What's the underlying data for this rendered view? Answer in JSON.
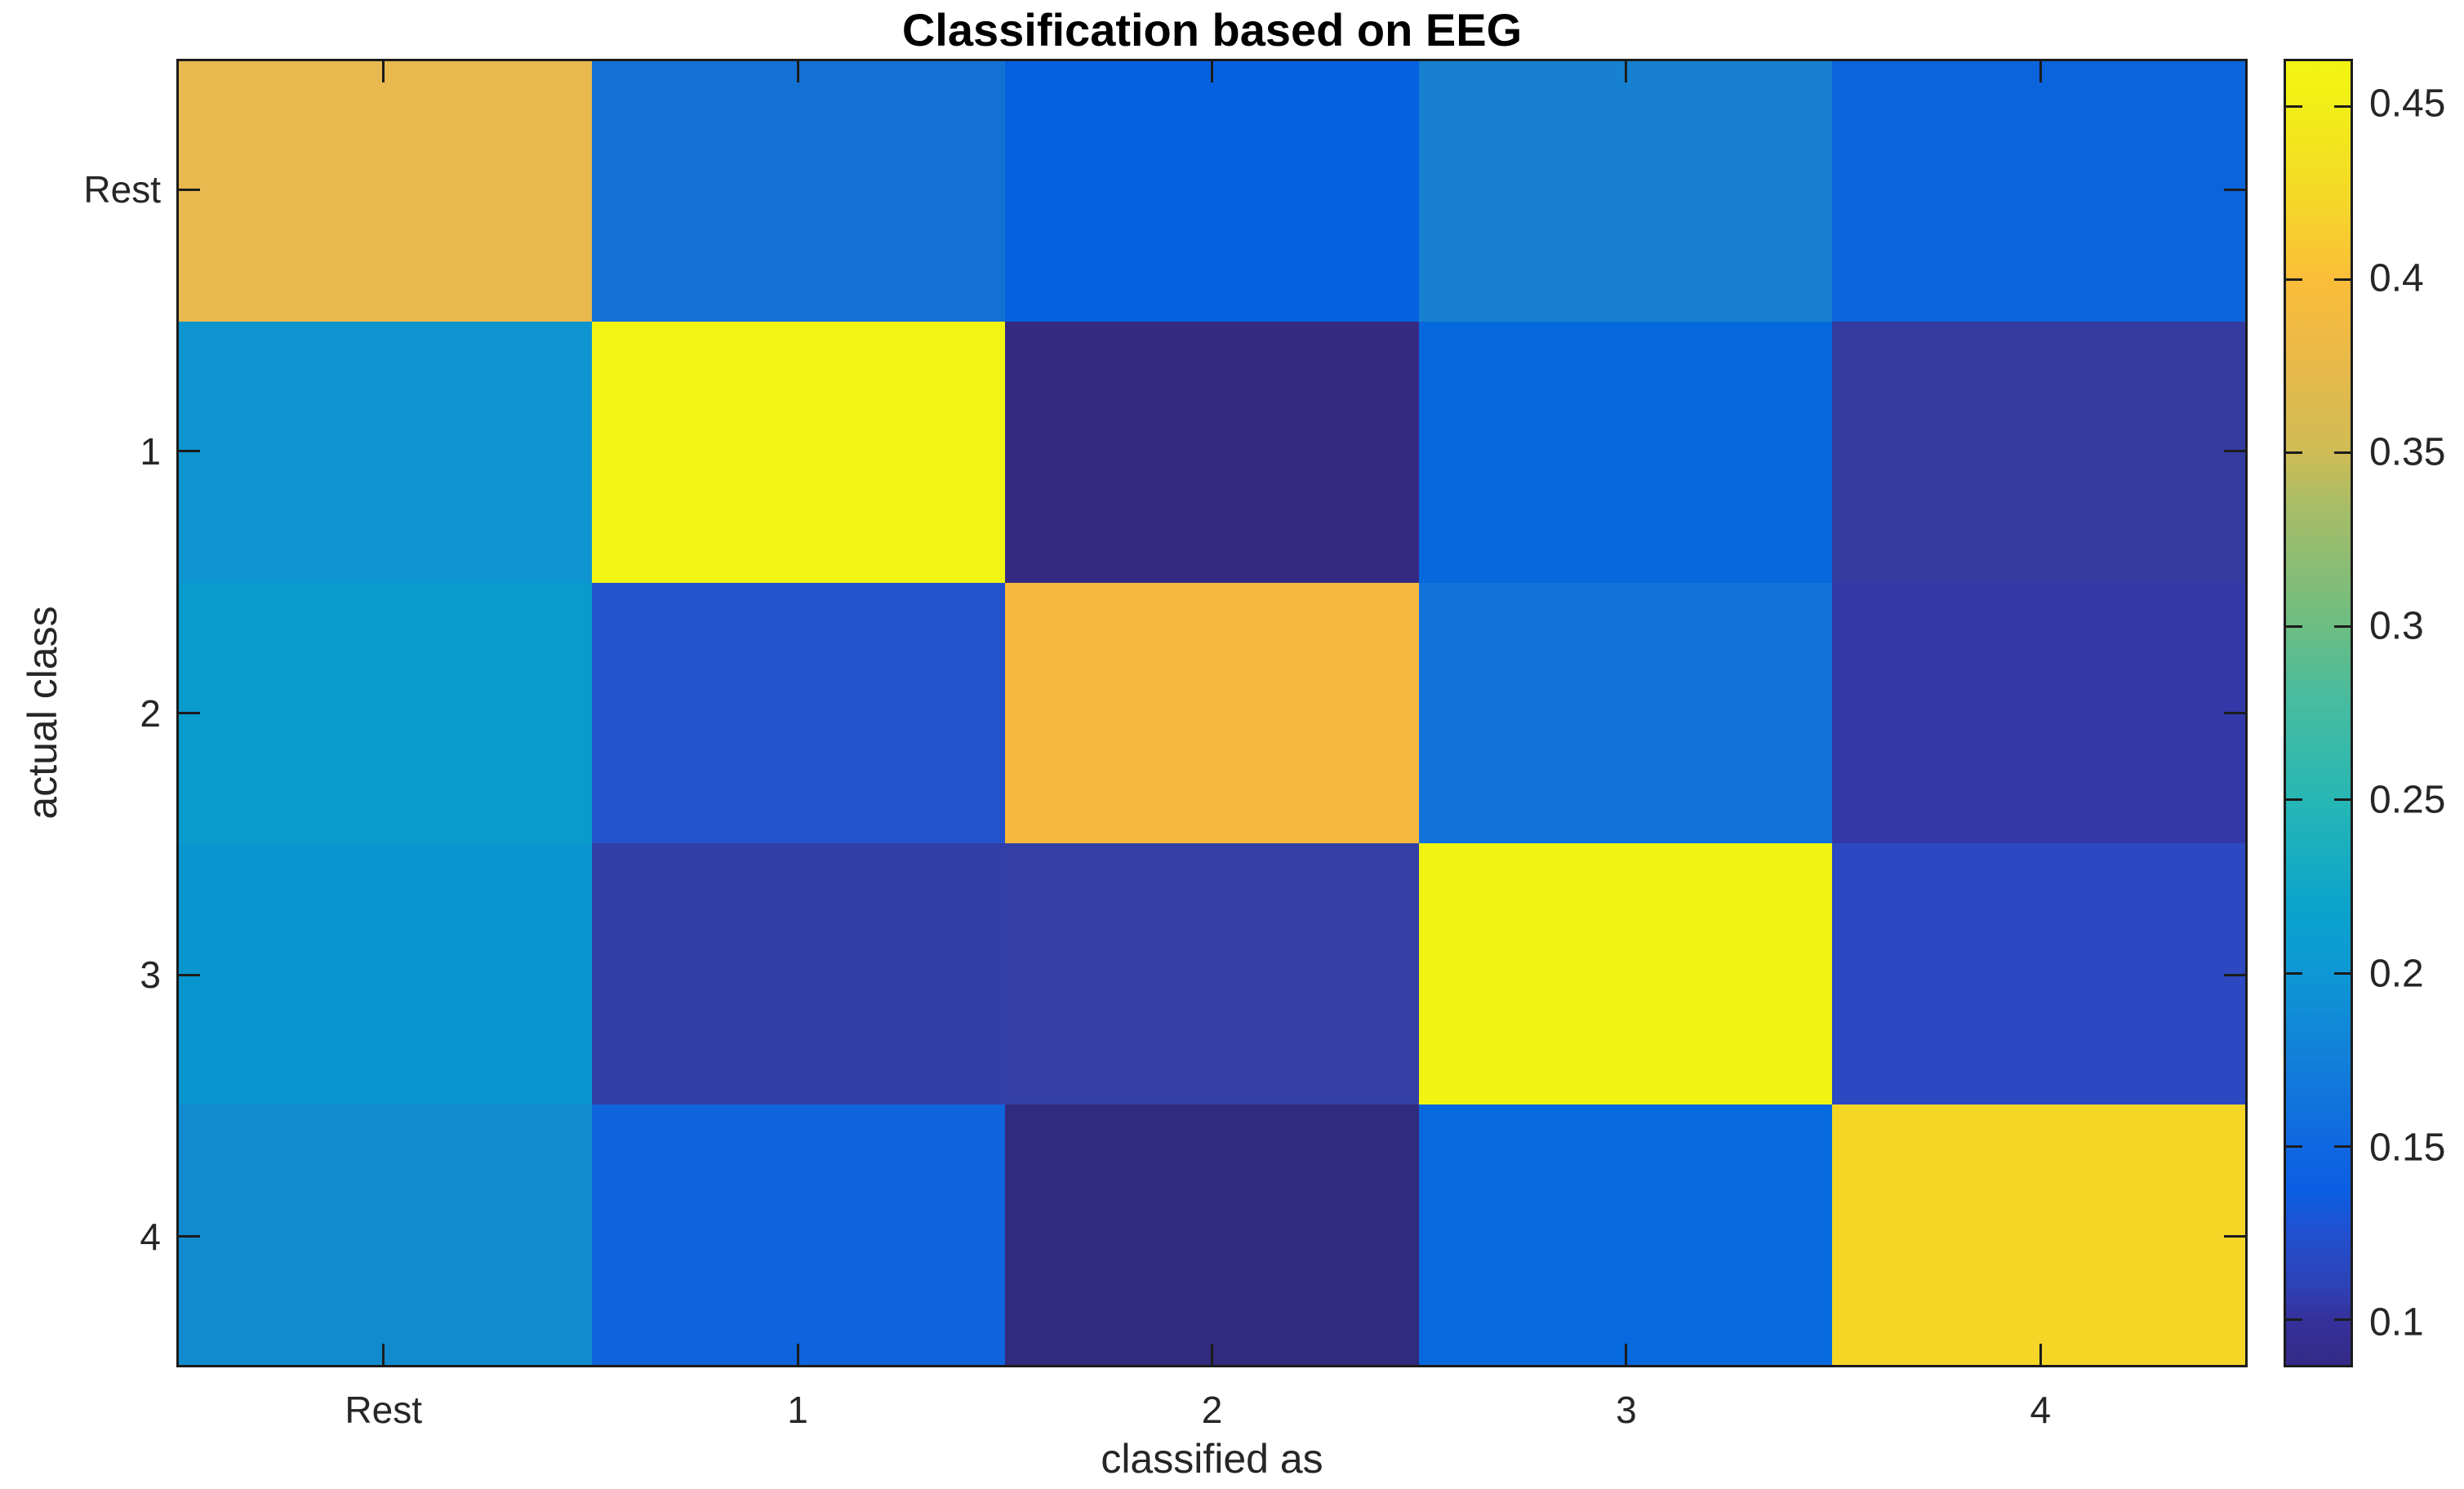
{
  "figure": {
    "background": "#ffffff",
    "title": "Classification based on EEG"
  },
  "chart_data": {
    "type": "heatmap",
    "title": "Classification based on EEG",
    "xlabel": "classified as",
    "ylabel": "actual class",
    "x_categories": [
      "Rest",
      "1",
      "2",
      "3",
      "4"
    ],
    "y_categories": [
      "Rest",
      "1",
      "2",
      "3",
      "4"
    ],
    "values": [
      [
        0.38,
        0.16,
        0.14,
        0.18,
        0.15
      ],
      [
        0.2,
        0.46,
        0.09,
        0.14,
        0.1
      ],
      [
        0.2,
        0.13,
        0.4,
        0.16,
        0.11
      ],
      [
        0.2,
        0.11,
        0.11,
        0.46,
        0.12
      ],
      [
        0.19,
        0.15,
        0.09,
        0.15,
        0.42
      ]
    ],
    "cell_colors": [
      [
        "#e8b94f",
        "#1471d4",
        "#0561e0",
        "#1780d0",
        "#0b64dc"
      ],
      [
        "#0e95cf",
        "#f2f513",
        "#352a82",
        "#0569dd",
        "#333b9e"
      ],
      [
        "#089bcc",
        "#2353cc",
        "#f6b93e",
        "#1173d9",
        "#3238a8"
      ],
      [
        "#0996ce",
        "#333fa8",
        "#3440a6",
        "#f1f411",
        "#2c49c1"
      ],
      [
        "#128bce",
        "#0d64dc",
        "#322a7e",
        "#0669dd",
        "#f5d627"
      ]
    ],
    "grid": false,
    "colormap": "parula",
    "colorbar": {
      "position": "right",
      "limits": [
        0.087,
        0.463
      ],
      "ticks": [
        {
          "label": "0.45",
          "value": 0.45
        },
        {
          "label": "0.4",
          "value": 0.4
        },
        {
          "label": "0.35",
          "value": 0.35
        },
        {
          "label": "0.3",
          "value": 0.3
        },
        {
          "label": "0.25",
          "value": 0.25
        },
        {
          "label": "0.2",
          "value": 0.2
        },
        {
          "label": "0.15",
          "value": 0.15
        },
        {
          "label": "0.1",
          "value": 0.1
        }
      ],
      "gradient": [
        {
          "pos": 0.0,
          "color": "#f3f511"
        },
        {
          "pos": 0.035,
          "color": "#f1ee17"
        },
        {
          "pos": 0.114,
          "color": "#f5d52a"
        },
        {
          "pos": 0.168,
          "color": "#fbbd39"
        },
        {
          "pos": 0.234,
          "color": "#e7b94a"
        },
        {
          "pos": 0.301,
          "color": "#cfbc55"
        },
        {
          "pos": 0.34,
          "color": "#a9bd66"
        },
        {
          "pos": 0.434,
          "color": "#6cbd82"
        },
        {
          "pos": 0.487,
          "color": "#49bc9e"
        },
        {
          "pos": 0.566,
          "color": "#27b7b4"
        },
        {
          "pos": 0.646,
          "color": "#0ca4cb"
        },
        {
          "pos": 0.699,
          "color": "#0d98d5"
        },
        {
          "pos": 0.766,
          "color": "#137fd9"
        },
        {
          "pos": 0.832,
          "color": "#0f68e1"
        },
        {
          "pos": 0.867,
          "color": "#0b5ee2"
        },
        {
          "pos": 0.899,
          "color": "#2150d0"
        },
        {
          "pos": 0.939,
          "color": "#2e42b6"
        },
        {
          "pos": 0.966,
          "color": "#35309a"
        },
        {
          "pos": 1.0,
          "color": "#352a87"
        }
      ]
    }
  },
  "colors": {
    "spine": "#1c1c1c",
    "tick_mark": "#1c1c1c",
    "tick_text": "#262626",
    "title_text": "#000000",
    "background": "#ffffff"
  }
}
